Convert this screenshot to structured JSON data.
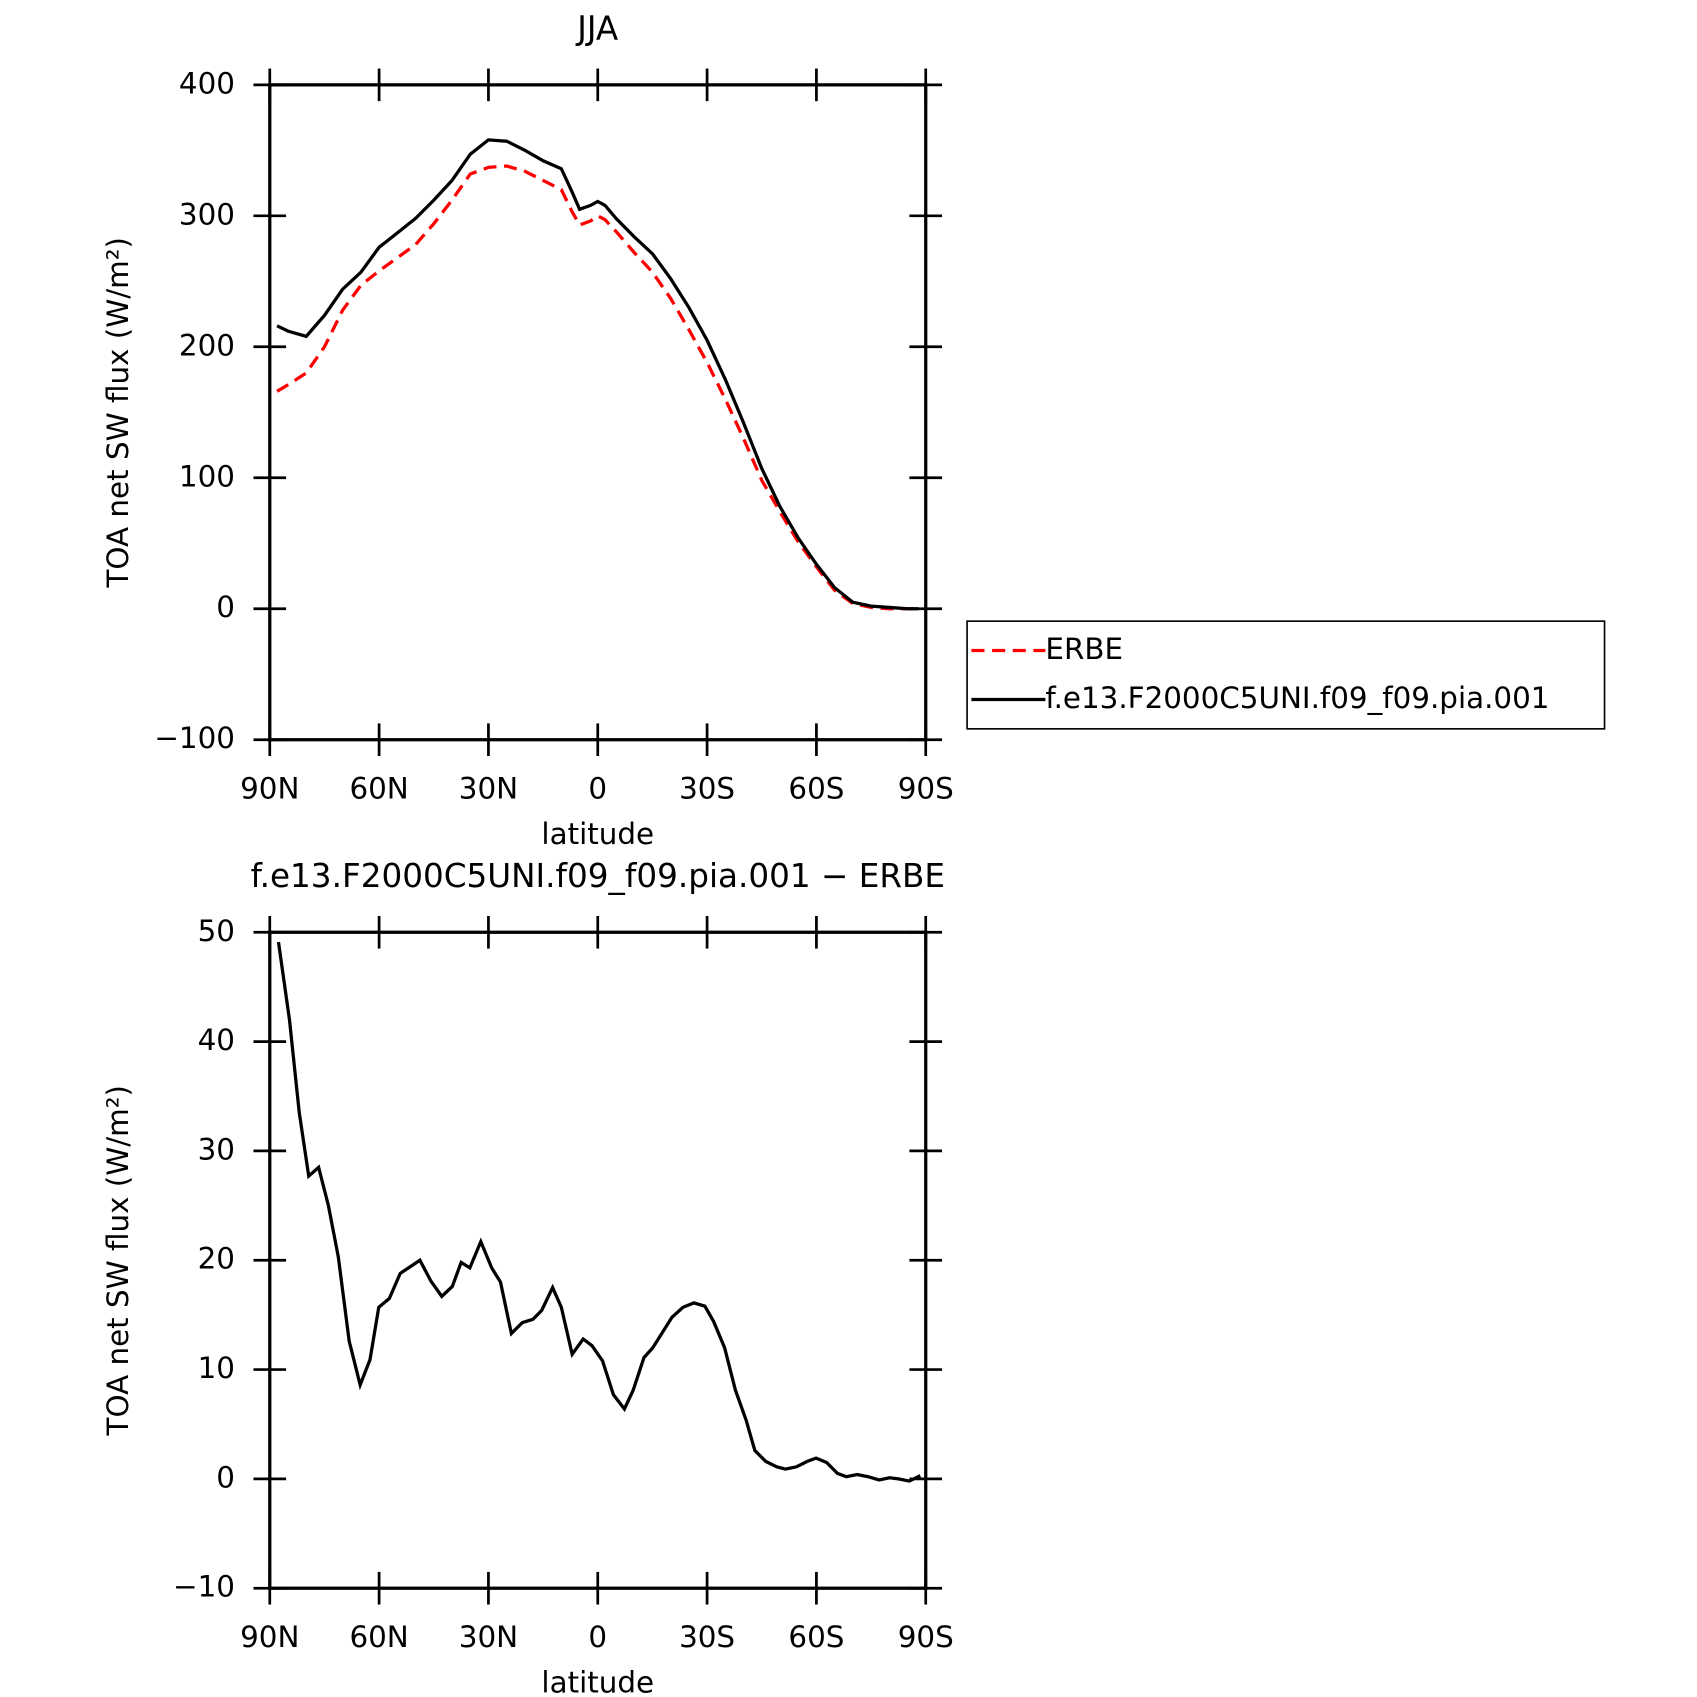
{
  "chart_data": [
    {
      "type": "line",
      "title": "JJA",
      "x_label": "latitude",
      "y_label": "TOA net SW flux (W/m²)",
      "xlim": [
        90,
        -90
      ],
      "xticks": [
        {
          "value": 90,
          "label": "90N"
        },
        {
          "value": 60,
          "label": "60N"
        },
        {
          "value": 30,
          "label": "30N"
        },
        0,
        {
          "value": -30,
          "label": "30S"
        },
        {
          "value": -60,
          "label": "60S"
        },
        {
          "value": -90,
          "label": "90S"
        }
      ],
      "ylim": [
        -100,
        400
      ],
      "yticks": [
        {
          "value": -100,
          "label": "−100"
        },
        0,
        100,
        200,
        300,
        400
      ],
      "legend": "right",
      "x": [
        88,
        85,
        80,
        75,
        70,
        65,
        60,
        55,
        50,
        45,
        40,
        35,
        30,
        25,
        20,
        15,
        10,
        7,
        5,
        2,
        0,
        -2,
        -5,
        -10,
        -15,
        -20,
        -25,
        -30,
        -35,
        -40,
        -45,
        -50,
        -55,
        -60,
        -65,
        -70,
        -75,
        -80,
        -85,
        -88
      ],
      "series": [
        {
          "name": "ERBE",
          "color": "#ff0000",
          "linestyle": "dashed",
          "values": [
            166,
            171,
            180,
            200,
            228,
            247,
            258,
            268,
            278,
            294,
            312,
            332,
            337,
            338,
            334,
            327,
            320,
            303,
            293,
            296,
            300,
            297,
            288,
            272,
            257,
            237,
            213,
            188,
            160,
            130,
            98,
            74,
            51,
            32,
            14,
            4,
            1,
            0,
            0,
            0
          ]
        },
        {
          "name": "f.e13.F2000C5UNI.f09_f09.pia.001",
          "color": "#000000",
          "linestyle": "solid",
          "values": [
            216,
            212,
            208,
            224,
            244,
            257,
            276,
            287,
            298,
            312,
            327,
            347,
            358,
            357,
            350,
            342,
            336,
            318,
            305,
            308,
            311,
            308,
            298,
            284,
            271,
            252,
            230,
            205,
            175,
            142,
            107,
            78,
            54,
            34,
            16,
            5,
            2,
            1,
            0,
            0
          ]
        }
      ]
    },
    {
      "type": "line",
      "title": "f.e13.F2000C5UNI.f09_f09.pia.001 − ERBE",
      "x_label": "latitude",
      "y_label": "TOA net SW flux (W/m²)",
      "xlim": [
        90,
        -90
      ],
      "xticks": [
        {
          "value": 90,
          "label": "90N"
        },
        {
          "value": 60,
          "label": "60N"
        },
        {
          "value": 30,
          "label": "30N"
        },
        0,
        {
          "value": -30,
          "label": "30S"
        },
        {
          "value": -60,
          "label": "60S"
        },
        {
          "value": -90,
          "label": "90S"
        }
      ],
      "ylim": [
        -10,
        50
      ],
      "yticks": [
        {
          "value": -10,
          "label": "−10"
        },
        0,
        10,
        20,
        30,
        40,
        50
      ],
      "x": [
        87.6,
        84.6,
        81.9,
        79.3,
        76.6,
        73.9,
        71.2,
        68.2,
        65.2,
        62.5,
        60.1,
        57.2,
        54.2,
        48.8,
        45.8,
        42.8,
        39.9,
        37.5,
        35.1,
        32.1,
        29.1,
        26.7,
        23.7,
        20.7,
        17.8,
        15.4,
        12.4,
        10,
        7,
        4,
        1.6,
        -1.3,
        -4.3,
        -7.3,
        -9.7,
        -12.7,
        -15.1,
        -20.4,
        -23.4,
        -26.4,
        -29.4,
        -31.8,
        -34.8,
        -37.8,
        -40.7,
        -43.1,
        -46.1,
        -49.1,
        -51.5,
        -54.5,
        -57.5,
        -59.9,
        -62.8,
        -65.8,
        -68.2,
        -71.2,
        -74.2,
        -77.2,
        -80.1,
        -82.5,
        -85.5,
        -88.5
      ],
      "series": [
        {
          "name": "f.e13.F2000C5UNI.f09_f09.pia.001 - ERBE",
          "color": "#000000",
          "linestyle": "solid",
          "values": [
            49.1,
            42,
            33.5,
            27.7,
            28.5,
            25,
            20.3,
            12.6,
            8.6,
            10.9,
            15.7,
            16.5,
            18.8,
            20,
            18.1,
            16.7,
            17.6,
            19.8,
            19.3,
            21.7,
            19.3,
            18,
            13.3,
            14.3,
            14.6,
            15.4,
            17.5,
            15.7,
            11.4,
            12.8,
            12.2,
            10.8,
            7.7,
            6.4,
            8.1,
            11.1,
            12,
            14.8,
            15.7,
            16.1,
            15.8,
            14.4,
            12,
            8.1,
            5.4,
            2.6,
            1.6,
            1.1,
            0.9,
            1.1,
            1.6,
            1.9,
            1.5,
            0.5,
            0.2,
            0.4,
            0.2,
            -0.1,
            0.1,
            0,
            -0.2,
            0.3
          ]
        }
      ]
    }
  ]
}
